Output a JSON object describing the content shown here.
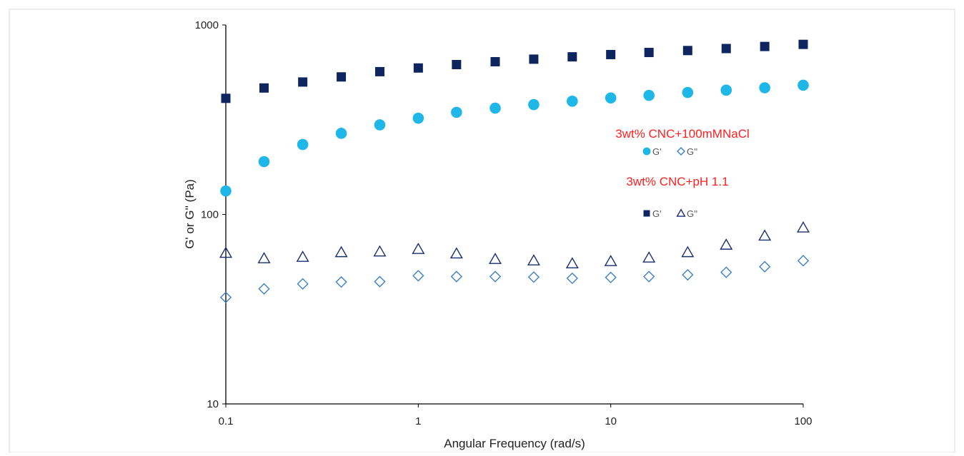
{
  "chart_data": {
    "type": "scatter",
    "xlabel": "Angular Frequency (rad/s)",
    "ylabel": "G' or G'' (Pa)",
    "xscale": "log",
    "yscale": "log",
    "xlim": [
      0.1,
      100
    ],
    "ylim": [
      10,
      1000
    ],
    "xticks": [
      {
        "value": 0.1,
        "label": "0.1"
      },
      {
        "value": 1,
        "label": "1"
      },
      {
        "value": 10,
        "label": "10"
      },
      {
        "value": 100,
        "label": "100"
      }
    ],
    "yticks": [
      {
        "value": 10,
        "label": "10"
      },
      {
        "value": 100,
        "label": "100"
      },
      {
        "value": 1000,
        "label": "1000"
      }
    ],
    "grid": false,
    "legend_groups": [
      {
        "title": "3wt% CNC+100mMNaCl",
        "title_color": "#ff2020",
        "entries": [
          {
            "series": 0,
            "label": "G'"
          },
          {
            "series": 1,
            "label": "G''"
          }
        ]
      },
      {
        "title": "3wt% CNC+pH 1.1",
        "title_color": "#ff2020",
        "entries": [
          {
            "series": 2,
            "label": "G'"
          },
          {
            "series": 3,
            "label": "G''"
          }
        ]
      }
    ],
    "x": [
      0.1,
      0.158,
      0.251,
      0.398,
      0.631,
      1,
      1.58,
      2.51,
      3.98,
      6.31,
      10,
      15.8,
      25.1,
      39.8,
      63.1,
      100
    ],
    "series": [
      {
        "name": "G'",
        "marker": "circle",
        "filled": true,
        "color": "#1fb6e8",
        "values": [
          133,
          190,
          234,
          268,
          297,
          322,
          346,
          364,
          380,
          396,
          412,
          425,
          440,
          453,
          466,
          481
        ]
      },
      {
        "name": "G''",
        "marker": "diamond",
        "filled": false,
        "color": "#3d7fc4",
        "values": [
          36.5,
          40.5,
          43,
          44,
          44.2,
          47.5,
          47,
          47,
          46.7,
          46,
          46.5,
          47,
          48,
          49.5,
          53,
          57
        ]
      },
      {
        "name": "G'",
        "marker": "square",
        "filled": true,
        "color": "#0e2560",
        "values": [
          410,
          465,
          500,
          532,
          567,
          593,
          618,
          640,
          660,
          679,
          698,
          716,
          733,
          751,
          770,
          790
        ]
      },
      {
        "name": "G''",
        "marker": "triangle",
        "filled": false,
        "color": "#1a2e6e",
        "values": [
          62.5,
          58.5,
          59.5,
          63,
          63.5,
          65.5,
          62,
          58,
          57,
          55,
          56.5,
          59,
          63,
          69,
          77,
          85
        ]
      }
    ]
  }
}
